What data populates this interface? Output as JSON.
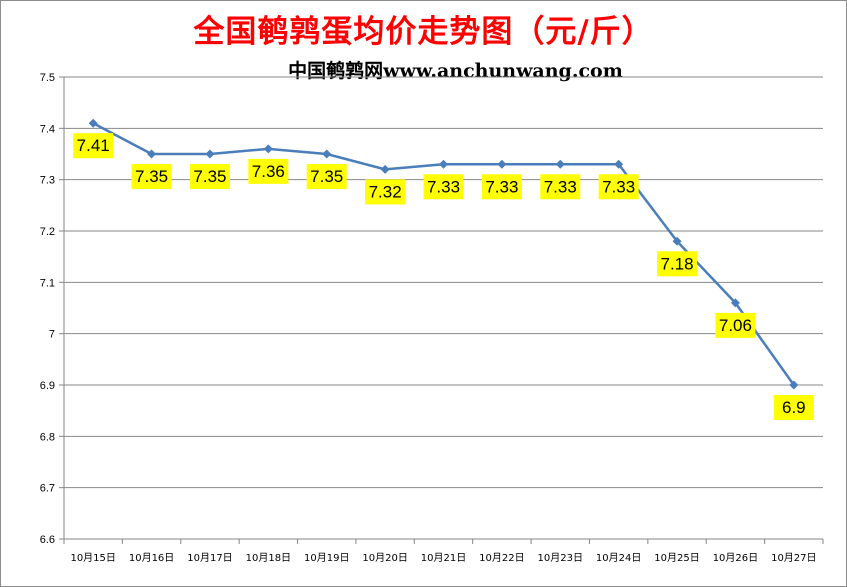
{
  "chart_data": {
    "type": "line",
    "title": "全国鹌鹑蛋均价走势图（元/斤）",
    "subtitle": "中国鹌鹑网www.anchunwang.com",
    "categories": [
      "10月15日",
      "10月16日",
      "10月17日",
      "10月18日",
      "10月19日",
      "10月20日",
      "10月21日",
      "10月22日",
      "10月23日",
      "10月24日",
      "10月25日",
      "10月26日",
      "10月27日"
    ],
    "series": [
      {
        "values": [
          7.41,
          7.35,
          7.35,
          7.36,
          7.35,
          7.32,
          7.33,
          7.33,
          7.33,
          7.33,
          7.18,
          7.06,
          6.9
        ]
      }
    ],
    "data_labels": [
      "7.41",
      "7.35",
      "7.35",
      "7.36",
      "7.35",
      "7.32",
      "7.33",
      "7.33",
      "7.33",
      "7.33",
      "7.18",
      "7.06",
      "6.9"
    ],
    "ylim": [
      6.6,
      7.5
    ],
    "yticks": [
      "6.6",
      "6.7",
      "6.8",
      "6.9",
      "7",
      "7.1",
      "7.2",
      "7.3",
      "7.4",
      "7.5"
    ],
    "xlabel": "",
    "ylabel": "",
    "grid": true,
    "legend": "none",
    "colors": {
      "title": "#ff0000",
      "line": "#4a7ebb",
      "label_bg": "#ffff00",
      "grid": "#878787"
    }
  }
}
